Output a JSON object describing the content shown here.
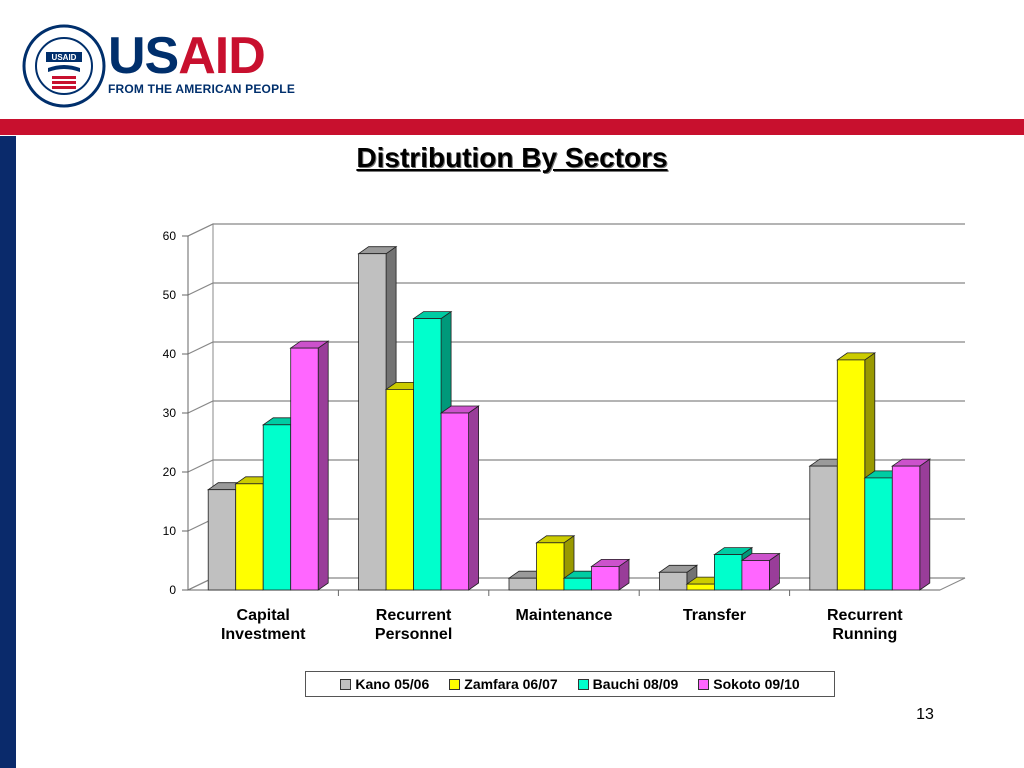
{
  "brand": {
    "name_part1": "US",
    "name_part2": "AID",
    "tagline": "FROM THE AMERICAN PEOPLE",
    "seal_label": "USAID seal",
    "seal_text_top": "UNITED STATES AGENCY",
    "seal_text_bottom": "INTERNATIONAL DEVELOPMENT",
    "seal_center": "USAID"
  },
  "slide": {
    "title": "Distribution By Sectors",
    "page_number": "13"
  },
  "colors": {
    "navy": "#0a2a6b",
    "red": "#c8102e"
  },
  "chart_data": {
    "type": "bar",
    "title": "",
    "categories": [
      [
        "Capital",
        "Investment"
      ],
      [
        "Recurrent",
        "Personnel"
      ],
      [
        "Maintenance"
      ],
      [
        "Transfer"
      ],
      [
        "Recurrent",
        "Running"
      ]
    ],
    "series": [
      {
        "name": "Kano 05/06",
        "color": "#c0c0c0",
        "values": [
          17,
          57,
          2,
          3,
          21
        ]
      },
      {
        "name": "Zamfara 06/07",
        "color": "#ffff00",
        "values": [
          18,
          34,
          8,
          1,
          39
        ]
      },
      {
        "name": "Bauchi 08/09",
        "color": "#00ffcc",
        "values": [
          28,
          46,
          2,
          6,
          19
        ]
      },
      {
        "name": "Sokoto 09/10",
        "color": "#ff66ff",
        "values": [
          41,
          30,
          4,
          5,
          21
        ]
      }
    ],
    "yticks": [
      0,
      10,
      20,
      30,
      40,
      50,
      60
    ],
    "ylim": [
      0,
      60
    ],
    "grid": true,
    "legend": "bottom",
    "style": "3d-column"
  }
}
